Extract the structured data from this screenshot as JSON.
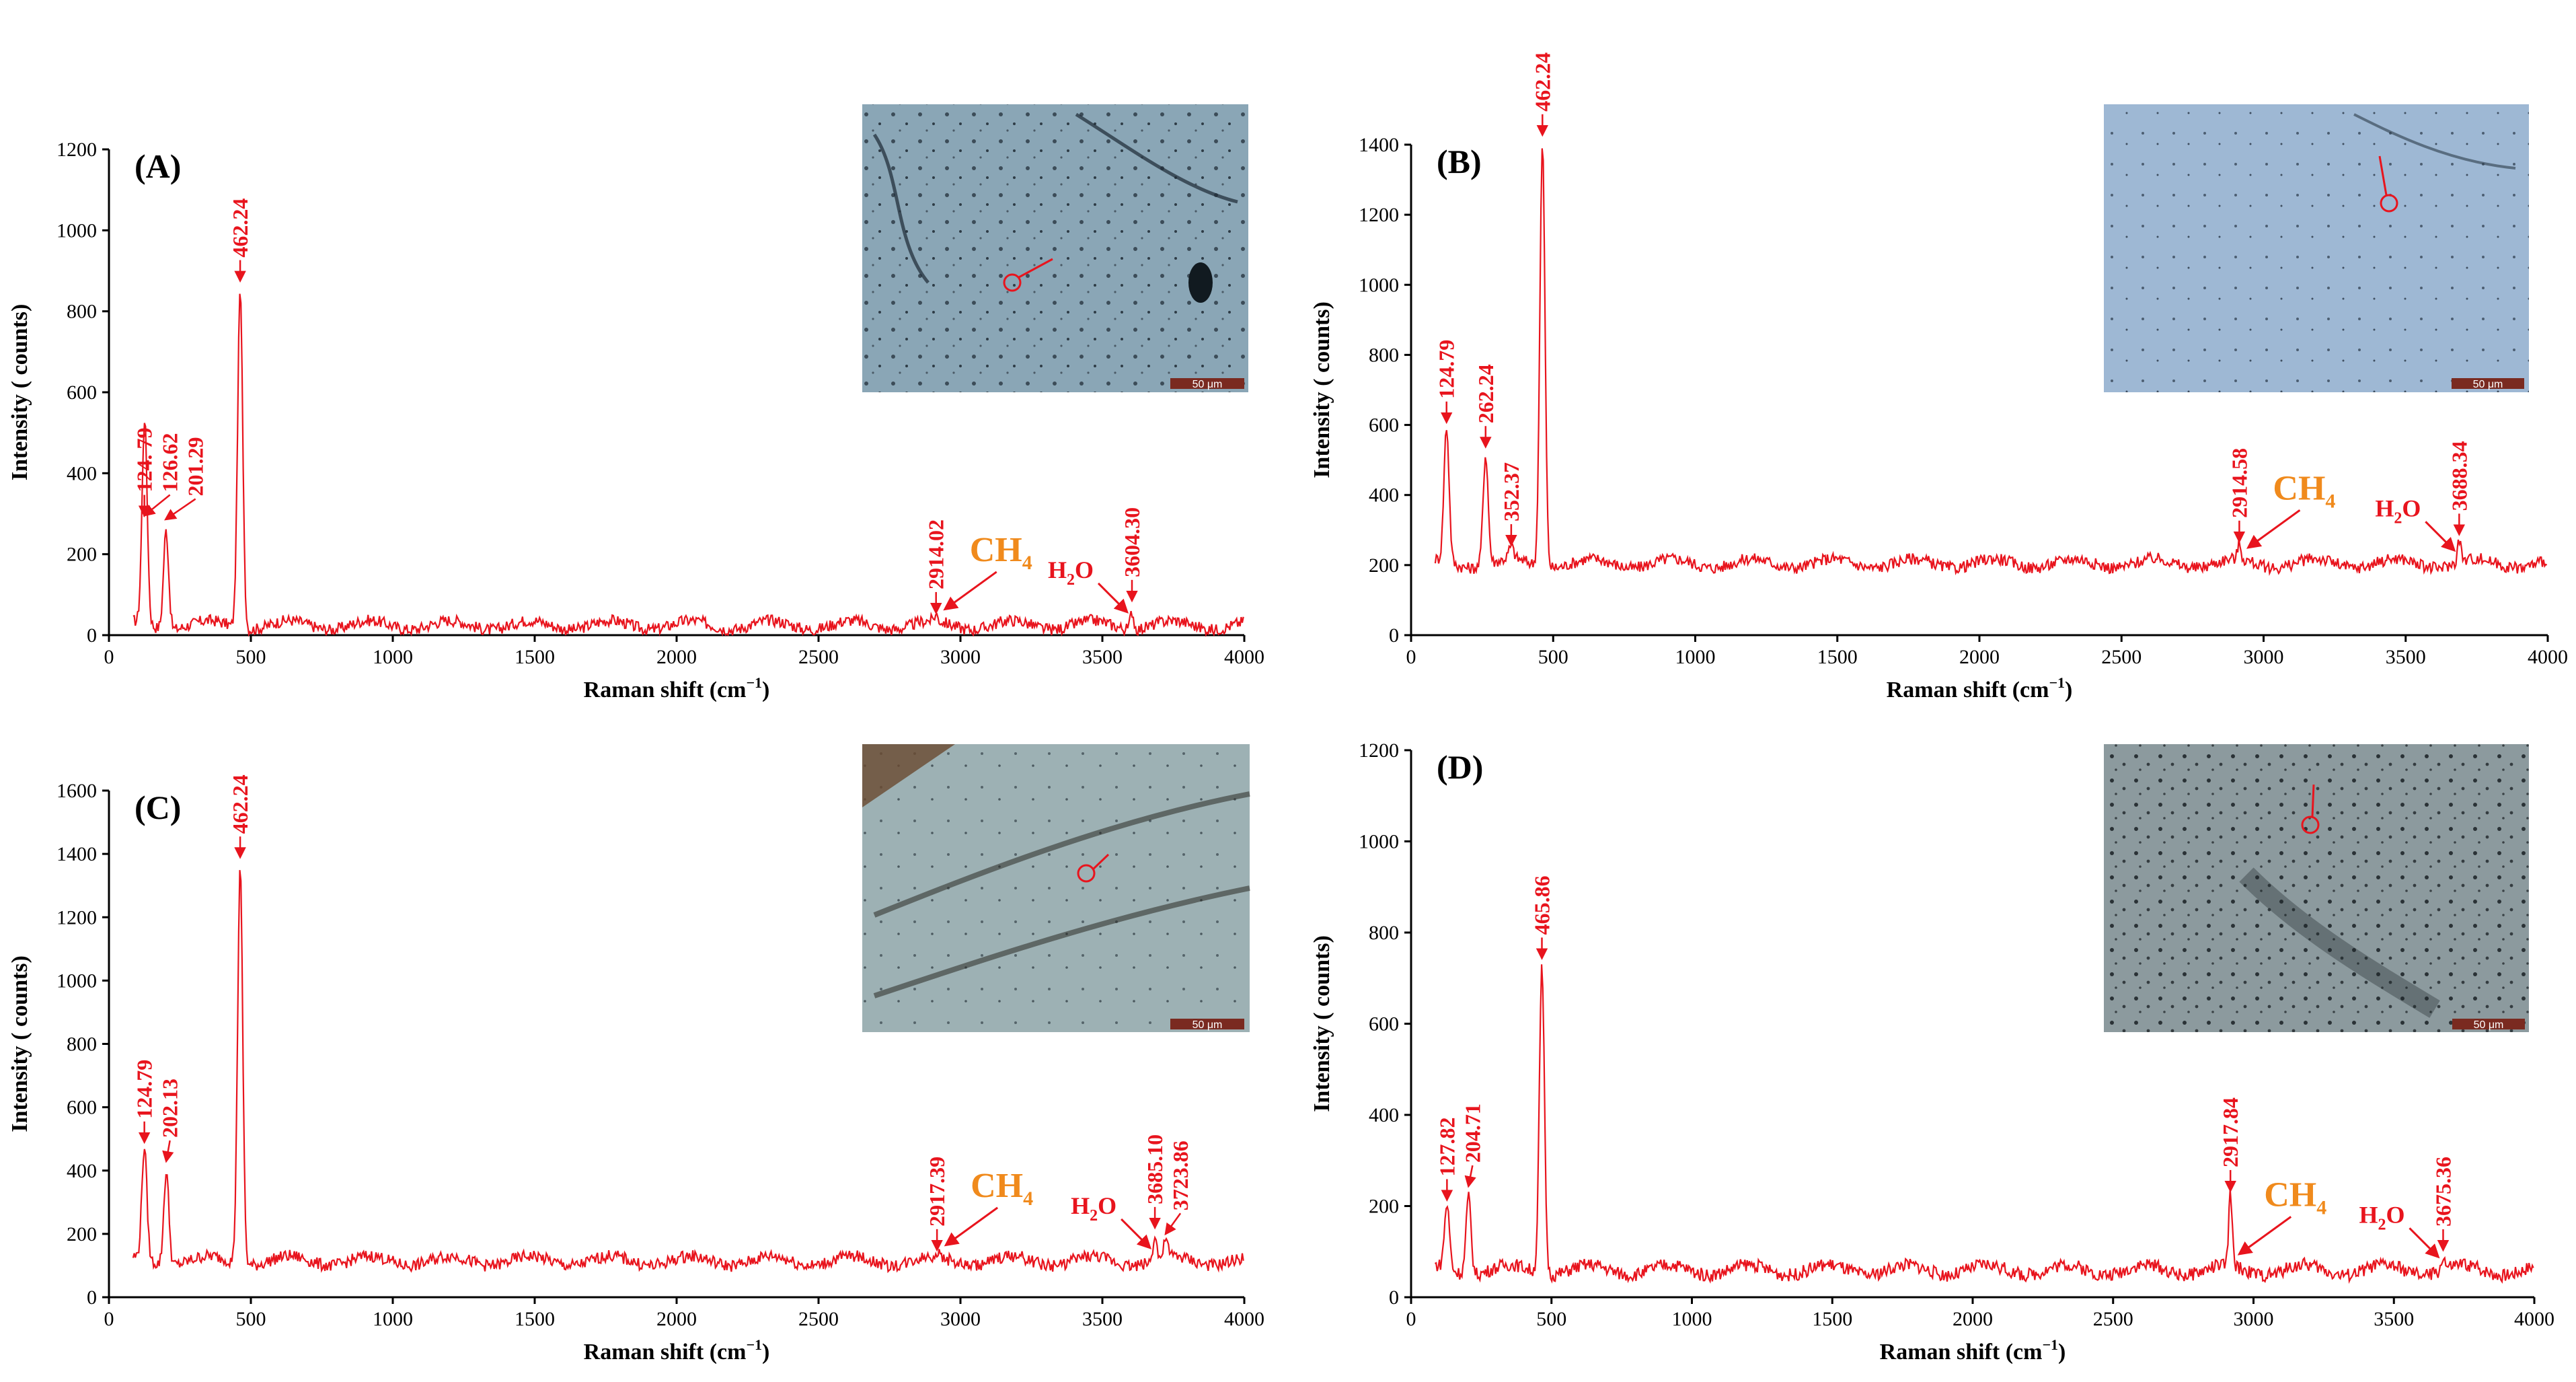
{
  "axis_text": {
    "ylabel": "Intensity ( counts)",
    "xlabel_main": "Raman shift  (cm",
    "xlabel_sup": "−1",
    "xlabel_end": ")"
  },
  "annotations": {
    "ch4_main": "CH",
    "ch4_sub": "4",
    "h2o_h": "H",
    "h2o_sub": "2",
    "h2o_o": "O",
    "scale_bar": "50 μm"
  },
  "colors": {
    "spectrum": "#e8141d",
    "arrow": "#e8141d",
    "ch4": "#f08a1c",
    "axis": "#000000",
    "scalebar_fill": "#7a2a20"
  },
  "chart_data": [
    {
      "type": "line",
      "panel": "(A)",
      "xlim": [
        0,
        4000
      ],
      "ylim": [
        0,
        1200
      ],
      "xticks": [
        "0",
        "500",
        "1000",
        "1500",
        "2000",
        "2500",
        "3000",
        "3500",
        "4000"
      ],
      "yticks": [
        "0",
        "200",
        "400",
        "600",
        "800",
        "1000",
        "1200"
      ],
      "baseline": 25,
      "peaks": [
        {
          "x": 126.62,
          "y": 280,
          "label": "126.62"
        },
        {
          "x": 124.79,
          "y": 280,
          "label": "124. 79"
        },
        {
          "x": 201.29,
          "y": 270,
          "label": "201.29"
        },
        {
          "x": 462.24,
          "y": 860,
          "label": "462.24"
        },
        {
          "x": 2914.02,
          "y": 40,
          "label": "2914.02"
        },
        {
          "x": 3604.3,
          "y": 70,
          "label": "3604.30"
        }
      ],
      "ch4_x": 2914.02,
      "h2o_x": 3604.3,
      "grid": false
    },
    {
      "type": "line",
      "panel": "(B)",
      "xlim": [
        0,
        4000
      ],
      "ylim": [
        0,
        1400
      ],
      "xticks": [
        "0",
        "500",
        "1000",
        "1500",
        "2000",
        "2500",
        "3000",
        "3500",
        "4000"
      ],
      "yticks": [
        "0",
        "200",
        "400",
        "600",
        "800",
        "1000",
        "1200",
        "1400"
      ],
      "baseline": 205,
      "peaks": [
        {
          "x": 124.79,
          "y": 590,
          "label": "124.79"
        },
        {
          "x": 262.24,
          "y": 520,
          "label": "262.24"
        },
        {
          "x": 352.37,
          "y": 240,
          "label": "352.37"
        },
        {
          "x": 462.24,
          "y": 1410,
          "label": "462.24"
        },
        {
          "x": 2914.58,
          "y": 250,
          "label": "2914.58"
        },
        {
          "x": 3688.34,
          "y": 270,
          "label": "3688.34"
        }
      ],
      "ch4_x": 2914.58,
      "h2o_x": 3688.34,
      "grid": false
    },
    {
      "type": "line",
      "panel": "(C)",
      "xlim": [
        0,
        4000
      ],
      "ylim": [
        0,
        1600
      ],
      "xticks": [
        "0",
        "500",
        "1000",
        "1500",
        "2000",
        "2500",
        "3000",
        "3500",
        "4000"
      ],
      "yticks": [
        "0",
        "200",
        "400",
        "600",
        "800",
        "1000",
        "1200",
        "1400",
        "1600"
      ],
      "baseline": 115,
      "peaks": [
        {
          "x": 124.79,
          "y": 470,
          "label": "124.79"
        },
        {
          "x": 202.13,
          "y": 410,
          "label": "202.13"
        },
        {
          "x": 462.24,
          "y": 1370,
          "label": "462.24"
        },
        {
          "x": 2917.39,
          "y": 130,
          "label": "2917.39"
        },
        {
          "x": 3685.1,
          "y": 200,
          "label": "3685.10"
        },
        {
          "x": 3723.86,
          "y": 180,
          "label": "3723.86"
        }
      ],
      "ch4_x": 2917.39,
      "h2o_x": 3685.1,
      "grid": false
    },
    {
      "type": "line",
      "panel": "(D)",
      "xlim": [
        0,
        4000
      ],
      "ylim": [
        0,
        1200
      ],
      "xticks": [
        "0",
        "500",
        "1000",
        "1500",
        "2000",
        "2500",
        "3000",
        "3500",
        "4000"
      ],
      "yticks": [
        "0",
        "200",
        "400",
        "600",
        "800",
        "1000",
        "1200"
      ],
      "baseline": 60,
      "peaks": [
        {
          "x": 127.82,
          "y": 200,
          "label": "127.82"
        },
        {
          "x": 204.71,
          "y": 230,
          "label": "204.71"
        },
        {
          "x": 465.86,
          "y": 730,
          "label": "465.86"
        },
        {
          "x": 2917.84,
          "y": 220,
          "label": "2917.84"
        },
        {
          "x": 3675.36,
          "y": 90,
          "label": "3675.36"
        }
      ],
      "ch4_x": 2917.84,
      "h2o_x": 3675.36,
      "grid": false
    }
  ]
}
